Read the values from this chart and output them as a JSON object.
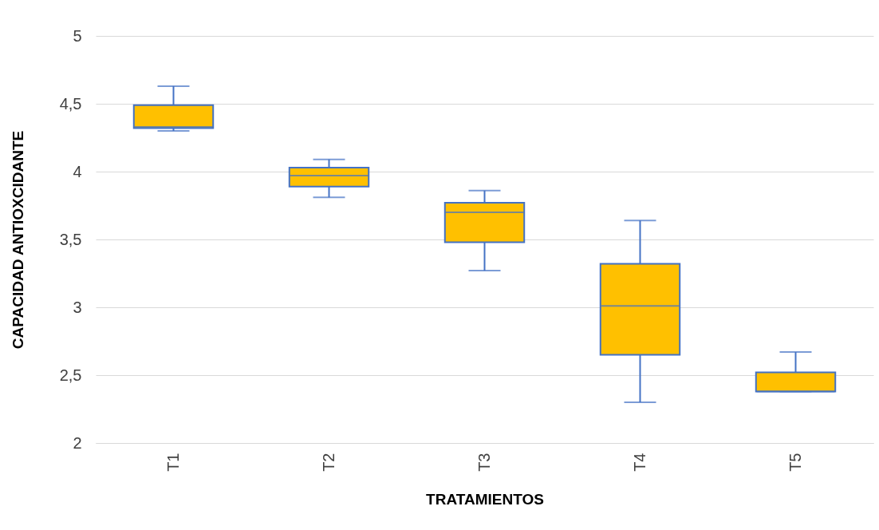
{
  "chart_data": {
    "type": "box",
    "xlabel": "TRATAMIENTOS",
    "ylabel": "CAPACIDAD ANTIOXCIDANTE",
    "categories": [
      "T1",
      "T2",
      "T3",
      "T4",
      "T5"
    ],
    "color": "#ffc000",
    "boxes": [
      {
        "low": 4.3,
        "q1": 4.32,
        "median": 4.33,
        "q3": 4.49,
        "high": 4.63
      },
      {
        "low": 3.81,
        "q1": 3.89,
        "median": 3.97,
        "q3": 4.03,
        "high": 4.09
      },
      {
        "low": 3.27,
        "q1": 3.48,
        "median": 3.7,
        "q3": 3.77,
        "high": 3.86
      },
      {
        "low": 2.3,
        "q1": 2.65,
        "median": 3.01,
        "q3": 3.32,
        "high": 3.64
      },
      {
        "low": 2.38,
        "q1": 2.38,
        "median": 2.38,
        "q3": 2.52,
        "high": 2.67
      }
    ],
    "ylim": [
      2,
      5
    ],
    "yticks": [
      2,
      {
        "value": 2.5,
        "label": "2,5"
      },
      3,
      {
        "value": 3.5,
        "label": "3,5"
      },
      4,
      {
        "value": 4.5,
        "label": "4,5"
      },
      5
    ],
    "grid": "y"
  }
}
